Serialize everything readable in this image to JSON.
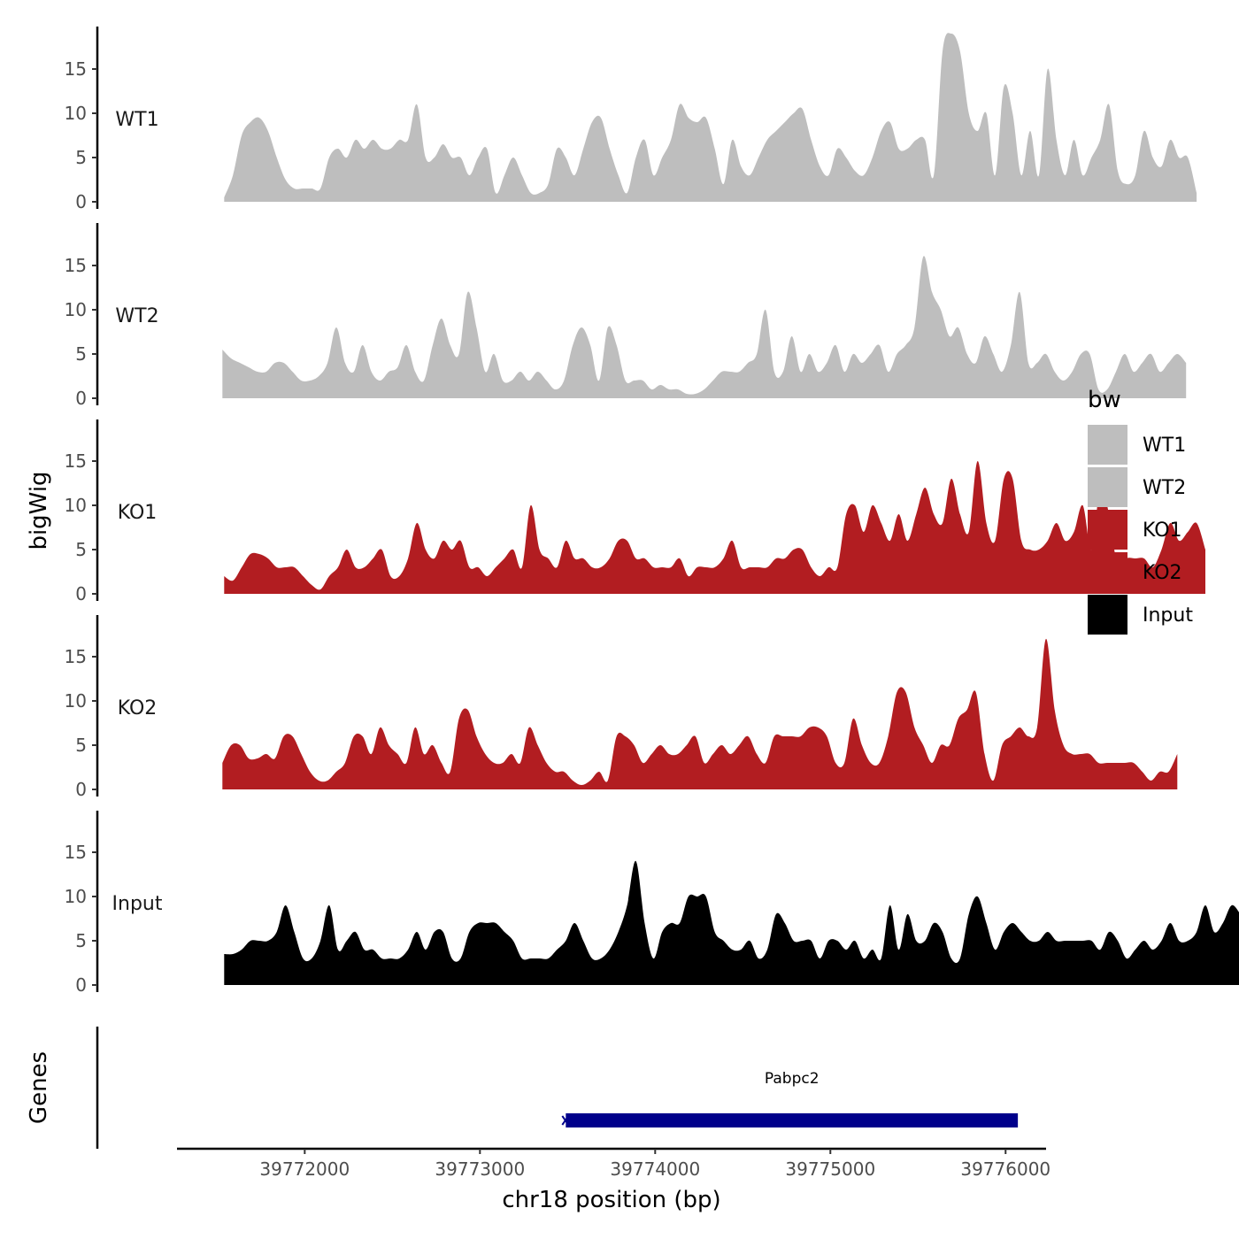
{
  "chart_data": {
    "type": "area",
    "ylabel": "bigWig",
    "xlabel": "chr18 position (bp)",
    "xlim": [
      39771271,
      39776231
    ],
    "ylim": [
      0,
      19.5
    ],
    "x_ticks": [
      39772000,
      39773000,
      39774000,
      39775000,
      39776000
    ],
    "y_ticks": [
      0,
      5,
      10,
      15
    ],
    "legend": {
      "title": "bw",
      "entries": [
        {
          "label": "WT1",
          "color": "#bebebe"
        },
        {
          "label": "WT2",
          "color": "#bebebe"
        },
        {
          "label": "KO1",
          "color": "#b21d21"
        },
        {
          "label": "KO2",
          "color": "#b21d21"
        },
        {
          "label": "Input",
          "color": "#000000"
        }
      ]
    },
    "series": [
      {
        "name": "WT1",
        "color": "#bebebe",
        "x_start": 39771540,
        "x_end": 39776060,
        "step": 50,
        "values": [
          0.5,
          3,
          7.5,
          9,
          9.5,
          8,
          5,
          2.5,
          1.5,
          1.5,
          1.5,
          1.5,
          5,
          6,
          5,
          7,
          6,
          7,
          6,
          6,
          7,
          7,
          11,
          5,
          5,
          6.5,
          5,
          5,
          3,
          5,
          6,
          1,
          3,
          5,
          3,
          1,
          1,
          2,
          6,
          5,
          3,
          6,
          9,
          9.5,
          6,
          3,
          1,
          5,
          7,
          3,
          5,
          7,
          11,
          9.5,
          9,
          9.5,
          6,
          2,
          7,
          4,
          3,
          5,
          7,
          8,
          9,
          10,
          10.5,
          7,
          4,
          3,
          6,
          5,
          3.5,
          3,
          5,
          8,
          9,
          6,
          6,
          7,
          7,
          3,
          17,
          19,
          17,
          10,
          8,
          10,
          3,
          13,
          10,
          3,
          8,
          3,
          15,
          7,
          3,
          7,
          3,
          5,
          7,
          11,
          3.5,
          2,
          3,
          8,
          5,
          4,
          7,
          5,
          5,
          1
        ]
      },
      {
        "name": "WT2",
        "color": "#bebebe",
        "x_start": 39771530,
        "x_end": 39776050,
        "step": 50,
        "values": [
          5.5,
          4.5,
          4,
          3.5,
          3,
          3,
          4,
          4,
          3,
          2,
          2,
          2.5,
          4,
          8,
          4,
          3,
          6,
          3,
          2,
          3,
          3.5,
          6,
          3,
          2,
          6,
          9,
          6,
          5,
          12,
          8,
          3,
          5,
          2,
          2,
          3,
          2,
          3,
          2,
          1,
          2,
          6,
          8,
          6,
          2,
          8,
          6,
          2,
          2,
          2,
          1,
          1.5,
          1,
          1,
          0.5,
          0.5,
          1,
          2,
          3,
          3,
          3,
          4,
          5,
          10,
          3,
          3,
          7,
          3,
          5,
          3,
          4,
          6,
          3,
          5,
          4,
          5,
          6,
          3,
          5,
          6,
          8,
          16,
          12,
          10,
          7,
          8,
          5,
          4,
          7,
          5,
          3,
          6,
          12,
          4,
          4,
          5,
          3,
          2,
          3,
          5,
          5,
          1,
          1,
          3,
          5,
          3,
          4,
          5,
          3,
          4,
          5,
          4
        ]
      },
      {
        "name": "KO1",
        "color": "#b21d21",
        "x_start": 39771540,
        "x_end": 39776060,
        "step": 50,
        "values": [
          2,
          1.5,
          3,
          4.5,
          4.5,
          4,
          3,
          3,
          3,
          2,
          1,
          0.5,
          2,
          3,
          5,
          3,
          3,
          4,
          5,
          2,
          2,
          4,
          8,
          5,
          4,
          6,
          5,
          6,
          3,
          3,
          2,
          3,
          4,
          5,
          3,
          10,
          5,
          4,
          3,
          6,
          4,
          4,
          3,
          3,
          4,
          6,
          6,
          4,
          4,
          3,
          3,
          3,
          4,
          2,
          3,
          3,
          3,
          4,
          6,
          3,
          3,
          3,
          3,
          4,
          4,
          5,
          5,
          3,
          2,
          3,
          3,
          9,
          10,
          7,
          10,
          8,
          6,
          9,
          6,
          9,
          12,
          9,
          8,
          13,
          9,
          7,
          15,
          8,
          6,
          13,
          13,
          6,
          5,
          5,
          6,
          8,
          6,
          7,
          10,
          5,
          12,
          9,
          3,
          4,
          4,
          4,
          3,
          5,
          8,
          6,
          7,
          8,
          5
        ]
      },
      {
        "name": "KO2",
        "color": "#b21d21",
        "x_start": 39771530,
        "x_end": 39776050,
        "step": 50,
        "values": [
          3,
          5,
          5,
          3.5,
          3.5,
          4,
          3.5,
          6,
          6,
          4,
          2,
          1,
          1,
          2,
          3,
          6,
          6,
          4,
          7,
          5,
          4,
          3,
          7,
          4,
          5,
          3,
          2,
          8,
          9,
          6,
          4,
          3,
          3,
          4,
          3,
          7,
          5,
          3,
          2,
          2,
          1,
          0.5,
          1,
          2,
          1,
          6,
          6,
          5,
          3,
          4,
          5,
          4,
          4,
          5,
          6,
          3,
          4,
          5,
          4,
          5,
          6,
          4,
          3,
          6,
          6,
          6,
          6,
          7,
          7,
          6,
          3,
          3,
          8,
          5,
          3,
          3,
          6,
          11,
          11,
          7,
          5,
          3,
          5,
          5,
          8,
          9,
          11,
          4,
          1,
          5,
          6,
          7,
          6,
          7,
          17,
          9,
          5,
          4,
          4,
          4,
          3,
          3,
          3,
          3,
          3,
          2,
          1,
          2,
          2,
          4
        ]
      },
      {
        "name": "Input",
        "color": "#000000",
        "x_start": 39771540,
        "x_end": 39776060,
        "step": 50,
        "values": [
          3.5,
          3.5,
          4,
          5,
          5,
          5,
          6,
          9,
          6,
          3,
          3,
          5,
          9,
          4,
          5,
          6,
          4,
          4,
          3,
          3,
          3,
          4,
          6,
          4,
          6,
          6,
          3,
          3,
          6,
          7,
          7,
          7,
          6,
          5,
          3,
          3,
          3,
          3,
          4,
          5,
          7,
          5,
          3,
          3,
          4,
          6,
          9,
          14,
          7,
          3,
          6,
          7,
          7,
          10,
          10,
          10,
          6,
          5,
          4,
          4,
          5,
          3,
          4,
          8,
          7,
          5,
          5,
          5,
          3,
          5,
          5,
          4,
          5,
          3,
          4,
          3,
          9,
          4,
          8,
          5,
          5,
          7,
          6,
          3,
          3,
          8,
          10,
          7,
          4,
          6,
          7,
          6,
          5,
          5,
          6,
          5,
          5,
          5,
          5,
          5,
          4,
          6,
          5,
          3,
          4,
          5,
          4,
          5,
          7,
          5,
          5,
          6,
          9,
          6,
          7,
          9,
          8
        ]
      }
    ],
    "genes": {
      "title": "Genes",
      "items": [
        {
          "name": "Pabpc2",
          "start": 39773490,
          "end": 39776070,
          "strand": "-",
          "color": "#00008b"
        }
      ]
    }
  }
}
